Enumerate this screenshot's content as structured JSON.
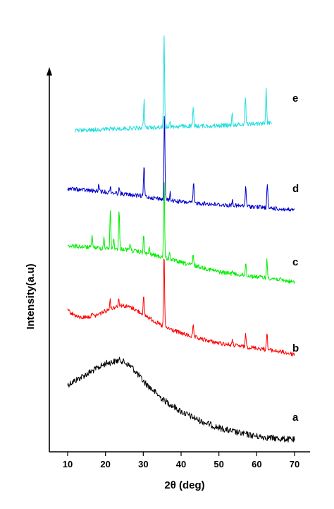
{
  "chart_data": {
    "type": "line",
    "title": "",
    "xlabel": "2θ (deg)",
    "ylabel": "Intensity(a.u)",
    "xlim": [
      5,
      72
    ],
    "xticks": [
      10,
      20,
      30,
      40,
      50,
      60,
      70
    ],
    "grid": false,
    "legend": "labels at right end of each trace",
    "series": [
      {
        "name": "a",
        "color": "#000000",
        "x_range": [
          10,
          70
        ],
        "baseline": [
          [
            10,
            545
          ],
          [
            15,
            530
          ],
          [
            20,
            515
          ],
          [
            24,
            510
          ],
          [
            27,
            520
          ],
          [
            30,
            540
          ],
          [
            35,
            565
          ],
          [
            40,
            583
          ],
          [
            45,
            596
          ],
          [
            50,
            606
          ],
          [
            55,
            613
          ],
          [
            60,
            618
          ],
          [
            65,
            621
          ],
          [
            70,
            623
          ]
        ],
        "peaks": []
      },
      {
        "name": "b",
        "color": "#ff0000",
        "x_range": [
          10,
          70
        ],
        "baseline": [
          [
            10,
            440
          ],
          [
            13,
            450
          ],
          [
            17,
            448
          ],
          [
            21,
            438
          ],
          [
            24,
            432
          ],
          [
            27,
            436
          ],
          [
            30,
            445
          ],
          [
            33,
            455
          ],
          [
            35,
            462
          ],
          [
            40,
            472
          ],
          [
            45,
            480
          ],
          [
            50,
            486
          ],
          [
            55,
            490
          ],
          [
            60,
            493
          ],
          [
            65,
            497
          ],
          [
            70,
            502
          ]
        ],
        "peaks": [
          [
            16.5,
            8
          ],
          [
            21.2,
            14
          ],
          [
            23.5,
            10
          ],
          [
            30.1,
            25
          ],
          [
            35.5,
            105
          ],
          [
            43.2,
            15
          ],
          [
            53.6,
            6
          ],
          [
            57.1,
            18
          ],
          [
            62.7,
            25
          ]
        ]
      },
      {
        "name": "c",
        "color": "#00ee00",
        "x_range": [
          10,
          70
        ],
        "baseline": [
          [
            10,
            348
          ],
          [
            15,
            350
          ],
          [
            20,
            352
          ],
          [
            25,
            353
          ],
          [
            30,
            358
          ],
          [
            35,
            364
          ],
          [
            40,
            372
          ],
          [
            45,
            378
          ],
          [
            50,
            385
          ],
          [
            55,
            389
          ],
          [
            60,
            392
          ],
          [
            65,
            395
          ],
          [
            70,
            400
          ]
        ],
        "peaks": [
          [
            16.5,
            18
          ],
          [
            19.6,
            16
          ],
          [
            21.3,
            55
          ],
          [
            22.2,
            14
          ],
          [
            23.6,
            55
          ],
          [
            26.5,
            10
          ],
          [
            30.1,
            25
          ],
          [
            31.6,
            8
          ],
          [
            35.5,
            120
          ],
          [
            37.0,
            10
          ],
          [
            43.2,
            15
          ],
          [
            53.6,
            6
          ],
          [
            57.1,
            18
          ],
          [
            62.7,
            25
          ]
        ]
      },
      {
        "name": "d",
        "color": "#0000cc",
        "x_range": [
          10,
          70
        ],
        "baseline": [
          [
            10,
            267
          ],
          [
            20,
            272
          ],
          [
            30,
            278
          ],
          [
            35,
            282
          ],
          [
            40,
            286
          ],
          [
            50,
            290
          ],
          [
            60,
            293
          ],
          [
            70,
            298
          ]
        ],
        "peaks": [
          [
            18.2,
            8
          ],
          [
            21.3,
            8
          ],
          [
            23.6,
            8
          ],
          [
            30.2,
            45
          ],
          [
            35.6,
            125
          ],
          [
            37.1,
            10
          ],
          [
            43.3,
            30
          ],
          [
            53.6,
            8
          ],
          [
            57.1,
            30
          ],
          [
            62.8,
            35
          ]
        ]
      },
      {
        "name": "e",
        "color": "#22dddd",
        "x_range": [
          12,
          64
        ],
        "baseline": [
          [
            12,
            185
          ],
          [
            20,
            183
          ],
          [
            30,
            181
          ],
          [
            40,
            179
          ],
          [
            50,
            178
          ],
          [
            60,
            175
          ],
          [
            64,
            174
          ]
        ],
        "peaks": [
          [
            30.2,
            40
          ],
          [
            35.5,
            133
          ],
          [
            37.0,
            8
          ],
          [
            43.2,
            25
          ],
          [
            53.5,
            15
          ],
          [
            57.0,
            40
          ],
          [
            62.5,
            50
          ]
        ]
      }
    ]
  }
}
